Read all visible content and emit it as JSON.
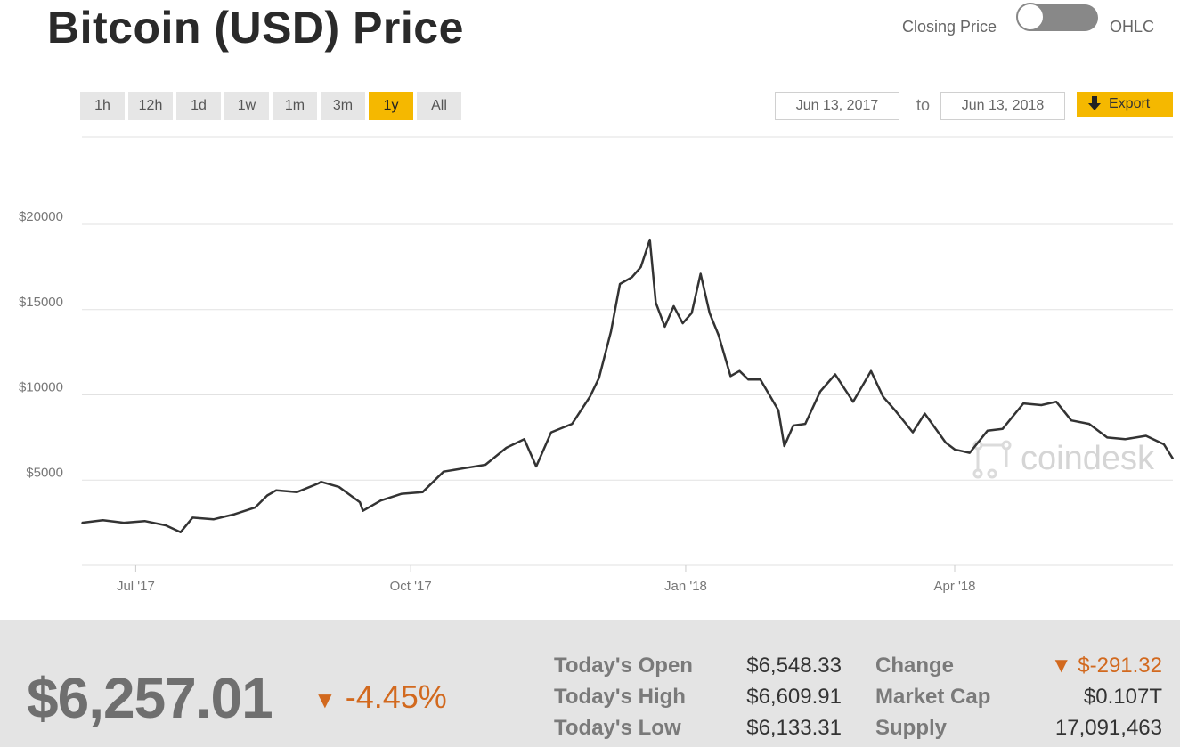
{
  "header": {
    "title": "Bitcoin (USD) Price",
    "toggle_left_label": "Closing Price",
    "toggle_right_label": "OHLC",
    "toggle_state": "Closing Price"
  },
  "controls": {
    "ranges": [
      "1h",
      "12h",
      "1d",
      "1w",
      "1m",
      "3m",
      "1y",
      "All"
    ],
    "active_range": "1y",
    "start_date": "Jun 13, 2017",
    "to_label": "to",
    "end_date": "Jun 13, 2018",
    "export_label": "Export",
    "export_icon": "download-arrow-icon"
  },
  "chart_data": {
    "type": "line",
    "title": "",
    "xlabel": "",
    "ylabel": "",
    "x_tick_labels": [
      "Jul '17",
      "Oct '17",
      "Jan '18",
      "Apr '18"
    ],
    "y_tick_labels": [
      "$5000",
      "$10000",
      "$15000",
      "$20000"
    ],
    "y_ticks": [
      5000,
      10000,
      15000,
      20000
    ],
    "ylim": [
      0,
      20000
    ],
    "grid": true,
    "line_color": "#333333",
    "watermark": "coindesk",
    "x": [
      "2017-06-13",
      "2017-06-20",
      "2017-06-27",
      "2017-07-04",
      "2017-07-11",
      "2017-07-16",
      "2017-07-20",
      "2017-07-27",
      "2017-08-03",
      "2017-08-10",
      "2017-08-14",
      "2017-08-17",
      "2017-08-24",
      "2017-08-31",
      "2017-09-01",
      "2017-09-07",
      "2017-09-14",
      "2017-09-15",
      "2017-09-21",
      "2017-09-28",
      "2017-10-05",
      "2017-10-12",
      "2017-10-19",
      "2017-10-26",
      "2017-11-02",
      "2017-11-08",
      "2017-11-12",
      "2017-11-17",
      "2017-11-24",
      "2017-11-30",
      "2017-12-03",
      "2017-12-07",
      "2017-12-10",
      "2017-12-14",
      "2017-12-17",
      "2017-12-20",
      "2017-12-22",
      "2017-12-25",
      "2017-12-28",
      "2017-12-31",
      "2018-01-03",
      "2018-01-06",
      "2018-01-09",
      "2018-01-12",
      "2018-01-16",
      "2018-01-19",
      "2018-01-22",
      "2018-01-26",
      "2018-02-01",
      "2018-02-03",
      "2018-02-06",
      "2018-02-10",
      "2018-02-15",
      "2018-02-20",
      "2018-02-26",
      "2018-03-04",
      "2018-03-08",
      "2018-03-12",
      "2018-03-18",
      "2018-03-22",
      "2018-03-29",
      "2018-04-01",
      "2018-04-06",
      "2018-04-12",
      "2018-04-17",
      "2018-04-24",
      "2018-04-30",
      "2018-05-05",
      "2018-05-10",
      "2018-05-16",
      "2018-05-22",
      "2018-05-28",
      "2018-06-04",
      "2018-06-10",
      "2018-06-13"
    ],
    "values": [
      2500,
      2650,
      2500,
      2600,
      2350,
      1950,
      2800,
      2700,
      3000,
      3400,
      4100,
      4400,
      4300,
      4800,
      4900,
      4600,
      3700,
      3200,
      3800,
      4200,
      4300,
      5500,
      5700,
      5900,
      6900,
      7400,
      5800,
      7800,
      8300,
      9900,
      11000,
      13700,
      16500,
      16900,
      17500,
      19100,
      15400,
      14000,
      15200,
      14200,
      14800,
      17100,
      14800,
      13500,
      11100,
      11400,
      10900,
      10900,
      9100,
      7000,
      8200,
      8300,
      10200,
      11200,
      9600,
      11400,
      9900,
      9100,
      7800,
      8900,
      7200,
      6800,
      6600,
      7900,
      8000,
      9500,
      9400,
      9600,
      8500,
      8300,
      7500,
      7400,
      7600,
      7100,
      6257
    ]
  },
  "summary": {
    "price": "$6,257.01",
    "change_pct": "-4.45%",
    "change_arrow": "▼",
    "stats_left": [
      {
        "label": "Today's Open",
        "value": "$6,548.33"
      },
      {
        "label": "Today's High",
        "value": "$6,609.91"
      },
      {
        "label": "Today's Low",
        "value": "$6,133.31"
      }
    ],
    "stats_right": [
      {
        "label": "Change",
        "value": "▼ $-291.32"
      },
      {
        "label": "Market Cap",
        "value": "$0.107T"
      },
      {
        "label": "Supply",
        "value": "17,091,463"
      }
    ],
    "negative_color": "#d2691e"
  }
}
